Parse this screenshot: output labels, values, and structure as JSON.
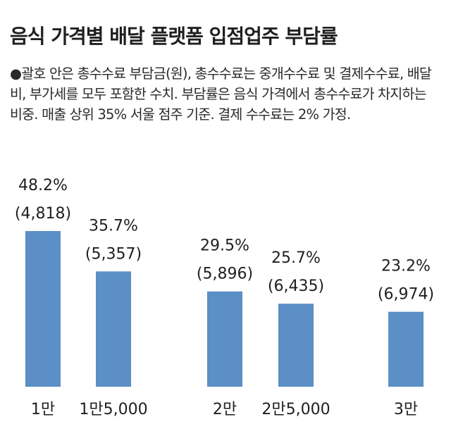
{
  "title": "음식 가격별 배달 플랫폼 입점업주 부담률",
  "note": "●괄호 안은 총수수료 부담금(원), 총수수료는 중개수수료 및 결제수수료, 배달비, 부가세를 모두 포함한 수치. 부담률은 음식 가격에서 총수수료가 차지하는 비중. 매출 상위 35% 서울 점주 기준. 결제 수수료는 2% 가정.",
  "colors": {
    "bar": "#5b8fc6",
    "text": "#1f1f1f"
  },
  "chart_data": {
    "type": "bar",
    "categories": [
      "1만",
      "1만5,000",
      "2만",
      "2만5,000",
      "3만"
    ],
    "values": [
      48.2,
      35.7,
      29.5,
      25.7,
      23.2
    ],
    "value_labels": [
      "48.2%",
      "35.7%",
      "29.5%",
      "25.7%",
      "23.2%"
    ],
    "fee_labels": [
      "(4,818)",
      "(5,357)",
      "(5,896)",
      "(6,435)",
      "(6,974)"
    ],
    "unit": "%"
  }
}
